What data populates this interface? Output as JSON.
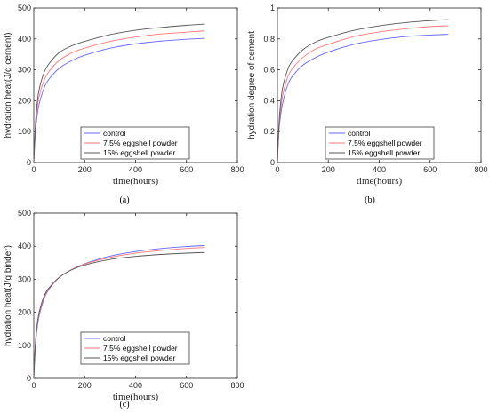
{
  "chart_data": [
    {
      "type": "line",
      "caption": "(a)",
      "xlabel": "time(hours)",
      "ylabel": "hydration heat(J/g cement)",
      "xlim": [
        0,
        800
      ],
      "ylim": [
        0,
        500
      ],
      "xticks": [
        0,
        200,
        400,
        600,
        800
      ],
      "yticks": [
        0,
        100,
        200,
        300,
        400,
        500
      ],
      "grid": false,
      "legend_position": "bottom-center",
      "series": [
        {
          "name": "control",
          "color": "#6666ff",
          "x": [
            0,
            5,
            10,
            20,
            40,
            60,
            100,
            150,
            200,
            300,
            400,
            500,
            600,
            672
          ],
          "y": [
            0,
            80,
            130,
            185,
            240,
            270,
            305,
            330,
            347,
            370,
            384,
            393,
            399,
            402
          ]
        },
        {
          "name": "7.5% eggshell powder",
          "color": "#ff7777",
          "x": [
            0,
            5,
            10,
            20,
            40,
            60,
            100,
            150,
            200,
            300,
            400,
            500,
            600,
            672
          ],
          "y": [
            0,
            90,
            148,
            210,
            265,
            295,
            330,
            355,
            370,
            392,
            406,
            416,
            422,
            426
          ]
        },
        {
          "name": "15% eggshell powder",
          "color": "#555555",
          "x": [
            0,
            5,
            10,
            20,
            40,
            60,
            100,
            150,
            200,
            300,
            400,
            500,
            600,
            672
          ],
          "y": [
            0,
            100,
            165,
            232,
            290,
            320,
            356,
            378,
            392,
            414,
            428,
            437,
            444,
            448
          ]
        }
      ]
    },
    {
      "type": "line",
      "caption": "(b)",
      "xlabel": "time(hours)",
      "ylabel": "hydration degree of cement",
      "xlim": [
        0,
        800
      ],
      "ylim": [
        0,
        1
      ],
      "xticks": [
        0,
        200,
        400,
        600,
        800
      ],
      "yticks": [
        0,
        0.2,
        0.4,
        0.6,
        0.8,
        1
      ],
      "grid": false,
      "legend_position": "bottom-center",
      "series": [
        {
          "name": "control",
          "color": "#6666ff",
          "x": [
            0,
            5,
            10,
            20,
            40,
            60,
            100,
            150,
            200,
            300,
            400,
            500,
            600,
            672
          ],
          "y": [
            0,
            0.17,
            0.27,
            0.38,
            0.5,
            0.56,
            0.63,
            0.68,
            0.715,
            0.765,
            0.795,
            0.815,
            0.825,
            0.83
          ]
        },
        {
          "name": "7.5% eggshell powder",
          "color": "#ff7777",
          "x": [
            0,
            5,
            10,
            20,
            40,
            60,
            100,
            150,
            200,
            300,
            400,
            500,
            600,
            672
          ],
          "y": [
            0,
            0.19,
            0.3,
            0.43,
            0.55,
            0.61,
            0.68,
            0.735,
            0.765,
            0.815,
            0.845,
            0.865,
            0.88,
            0.885
          ]
        },
        {
          "name": "15% eggshell powder",
          "color": "#555555",
          "x": [
            0,
            5,
            10,
            20,
            40,
            60,
            100,
            150,
            200,
            300,
            400,
            500,
            600,
            672
          ],
          "y": [
            0,
            0.21,
            0.34,
            0.48,
            0.6,
            0.66,
            0.73,
            0.78,
            0.81,
            0.855,
            0.885,
            0.905,
            0.918,
            0.925
          ]
        }
      ]
    },
    {
      "type": "line",
      "caption": "(c)",
      "xlabel": "time(hours)",
      "ylabel": "hydration heat(J/g binder)",
      "xlim": [
        0,
        800
      ],
      "ylim": [
        0,
        500
      ],
      "xticks": [
        0,
        200,
        400,
        600,
        800
      ],
      "yticks": [
        0,
        100,
        200,
        300,
        400,
        500
      ],
      "grid": false,
      "legend_position": "bottom-center",
      "series": [
        {
          "name": "control",
          "color": "#6666ff",
          "x": [
            0,
            5,
            10,
            20,
            40,
            60,
            100,
            150,
            200,
            300,
            400,
            500,
            600,
            672
          ],
          "y": [
            0,
            80,
            130,
            185,
            240,
            270,
            305,
            330,
            347,
            370,
            384,
            393,
            399,
            402
          ]
        },
        {
          "name": "7.5% eggshell powder",
          "color": "#ff7777",
          "x": [
            0,
            5,
            10,
            20,
            40,
            60,
            100,
            150,
            200,
            300,
            400,
            500,
            600,
            672
          ],
          "y": [
            0,
            84,
            136,
            190,
            244,
            272,
            305,
            330,
            346,
            366,
            379,
            387,
            393,
            396
          ]
        },
        {
          "name": "15% eggshell powder",
          "color": "#555555",
          "x": [
            0,
            5,
            10,
            20,
            40,
            60,
            100,
            150,
            200,
            300,
            400,
            500,
            600,
            672
          ],
          "y": [
            0,
            88,
            142,
            196,
            248,
            274,
            306,
            329,
            343,
            360,
            369,
            375,
            379,
            381
          ]
        }
      ]
    }
  ]
}
